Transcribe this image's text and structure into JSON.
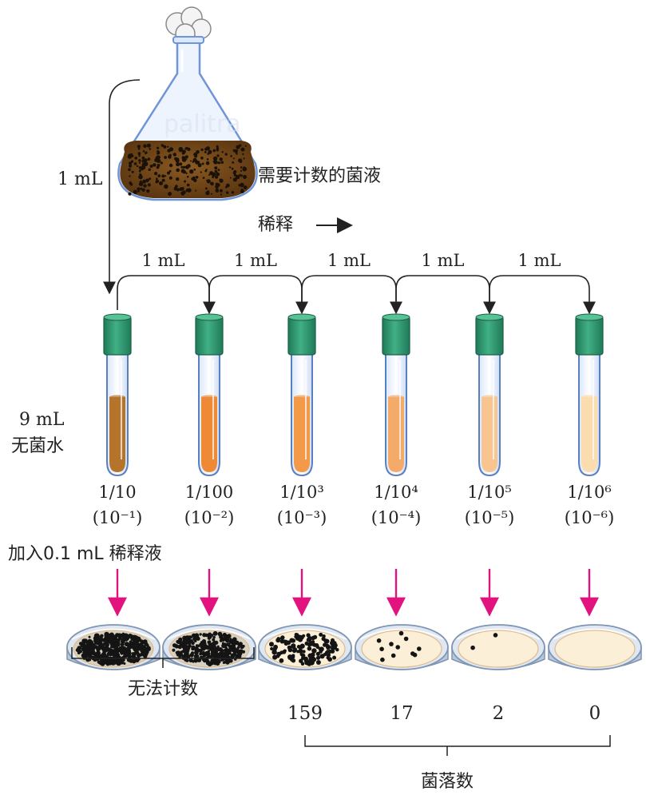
{
  "flask": {
    "label": "需要计数的菌液",
    "transfer_label": "1 mL"
  },
  "dilute": {
    "label": "稀释"
  },
  "tube_transfers": [
    "1 mL",
    "1 mL",
    "1 mL",
    "1 mL",
    "1 mL"
  ],
  "water": {
    "line1": "9 mL",
    "line2": "无菌水"
  },
  "tubes": [
    {
      "fraction": "1/10",
      "power": "(10⁻¹)",
      "liquid": "#b5742a"
    },
    {
      "fraction": "1/100",
      "power": "(10⁻²)",
      "liquid": "#ee8a36"
    },
    {
      "fraction": "1/10³",
      "power": "(10⁻³)",
      "liquid": "#f29a48"
    },
    {
      "fraction": "1/10⁴",
      "power": "(10⁻⁴)",
      "liquid": "#f4aa68"
    },
    {
      "fraction": "1/10⁵",
      "power": "(10⁻⁵)",
      "liquid": "#f8c48f"
    },
    {
      "fraction": "1/10⁶",
      "power": "(10⁻⁶)",
      "liquid": "#fbdcae"
    }
  ],
  "plating": {
    "label": "加入0.1 mL 稀释液"
  },
  "dishes": [
    {
      "count": "",
      "colonies": 1.0
    },
    {
      "count": "",
      "colonies": 0.8
    },
    {
      "count": "159",
      "colonies": 0.35
    },
    {
      "count": "17",
      "colonies": 0.06
    },
    {
      "count": "2",
      "colonies": 0.015
    },
    {
      "count": "0",
      "colonies": 0
    }
  ],
  "brackets": {
    "uncountable": "无法计数",
    "colonies": "菌落数"
  },
  "colors": {
    "arrow": "#e2127f",
    "cap": "#2e9b73",
    "tube_outline": "#5a7fc0",
    "line": "#222222"
  }
}
